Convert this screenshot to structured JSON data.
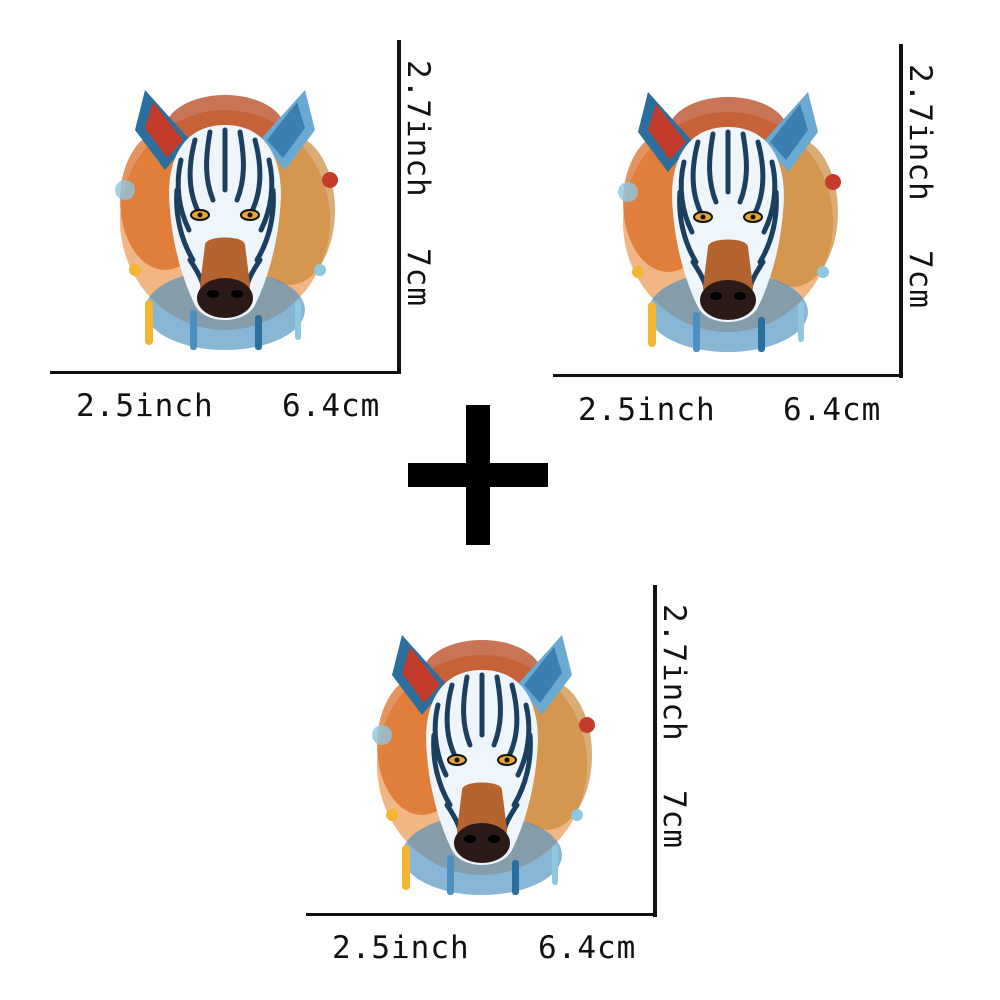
{
  "stickers": [
    {
      "height_inch": "2.7inch",
      "height_cm": "7cm",
      "width_inch": "2.5inch",
      "width_cm": "6.4cm"
    },
    {
      "height_inch": "2.7inch",
      "height_cm": "7cm",
      "width_inch": "2.5inch",
      "width_cm": "6.4cm"
    },
    {
      "height_inch": "2.7inch",
      "height_cm": "7cm",
      "width_inch": "2.5inch",
      "width_cm": "6.4cm"
    }
  ],
  "colors": {
    "line": "#111111",
    "stripe_blue": "#2a6f9e",
    "splash_orange": "#e57a1f",
    "splash_red": "#c23b2b",
    "splash_yellow": "#f2b632",
    "splash_lightblue": "#8fc6e0"
  }
}
